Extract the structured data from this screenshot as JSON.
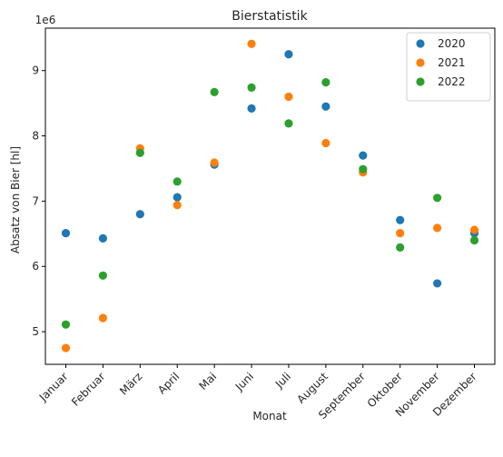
{
  "chart_data": {
    "type": "scatter",
    "title": "Bierstatistik",
    "xlabel": "Monat",
    "ylabel": "Absatz von Bier [hl]",
    "y_offset_label": "1e6",
    "categories": [
      "Januar",
      "Februar",
      "März",
      "April",
      "Mai",
      "Juni",
      "Juli",
      "August",
      "September",
      "Oktober",
      "November",
      "Dezember"
    ],
    "ylim": [
      4500000,
      9650000
    ],
    "yticks": [
      5000000,
      6000000,
      7000000,
      8000000,
      9000000
    ],
    "ytick_labels": [
      "5",
      "6",
      "7",
      "8",
      "9"
    ],
    "legend_position": "top-right",
    "grid": false,
    "series": [
      {
        "name": "2020",
        "color": "#1f77b4",
        "values": [
          6510000,
          6430000,
          6800000,
          7060000,
          7560000,
          8420000,
          9250000,
          8450000,
          7700000,
          6710000,
          5740000,
          6510000
        ]
      },
      {
        "name": "2021",
        "color": "#ff7f0e",
        "values": [
          4750000,
          5210000,
          7810000,
          6940000,
          7590000,
          9410000,
          8600000,
          7890000,
          7440000,
          6510000,
          6590000,
          6560000
        ]
      },
      {
        "name": "2022",
        "color": "#2ca02c",
        "values": [
          5110000,
          5860000,
          7740000,
          7300000,
          8670000,
          8740000,
          8190000,
          8820000,
          7490000,
          6290000,
          7050000,
          6400000
        ]
      }
    ]
  }
}
